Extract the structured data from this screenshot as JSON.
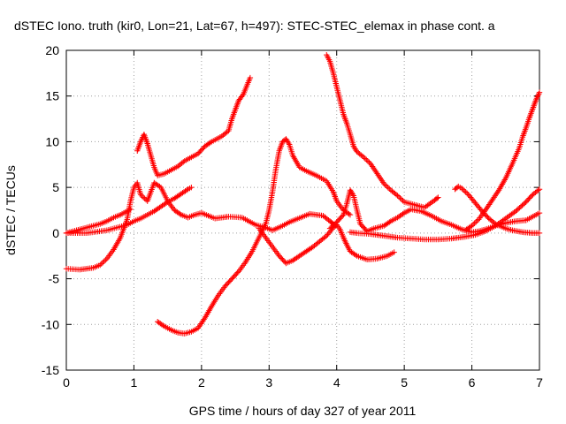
{
  "chart_data": {
    "type": "scatter",
    "title": "dSTEC Iono. truth (kir0, Lon=21, Lat=67, h=497): STEC-STEC_elemax in phase cont. a",
    "xlabel": "GPS time / hours of day 327 of year 2011",
    "ylabel": "dSTEC  / TECUs",
    "xlim": [
      0,
      7
    ],
    "ylim": [
      -15,
      20
    ],
    "xticks": [
      "0",
      "1",
      "2",
      "3",
      "4",
      "5",
      "6",
      "7"
    ],
    "yticks": [
      "-15",
      "-10",
      "-5",
      "0",
      "5",
      "10",
      "15",
      "20"
    ],
    "grid": true,
    "legend": "none",
    "marker": "plus",
    "color": "#ff0000",
    "series": [
      {
        "points": [
          [
            0,
            -3.9
          ],
          [
            0.2,
            -4.0
          ],
          [
            0.4,
            -3.8
          ],
          [
            0.5,
            -3.5
          ],
          [
            0.6,
            -2.8
          ],
          [
            0.7,
            -1.8
          ],
          [
            0.8,
            -0.5
          ],
          [
            0.9,
            1.5
          ],
          [
            0.95,
            3.5
          ],
          [
            1.0,
            5.0
          ],
          [
            1.05,
            5.5
          ],
          [
            1.1,
            4.2
          ],
          [
            1.2,
            3.5
          ],
          [
            1.3,
            5.5
          ],
          [
            1.4,
            5.0
          ],
          [
            1.5,
            3.5
          ],
          [
            1.6,
            2.5
          ],
          [
            1.7,
            2.0
          ],
          [
            1.8,
            1.7
          ],
          [
            1.9,
            2.0
          ],
          [
            2.0,
            2.2
          ],
          [
            2.1,
            1.9
          ],
          [
            2.2,
            1.6
          ],
          [
            2.4,
            1.8
          ],
          [
            2.6,
            1.7
          ],
          [
            2.7,
            1.3
          ],
          [
            2.8,
            0.9
          ],
          [
            2.95,
            0.6
          ],
          [
            3.05,
            0.3
          ],
          [
            3.2,
            0.8
          ],
          [
            3.3,
            1.2
          ],
          [
            3.4,
            1.5
          ],
          [
            3.5,
            1.8
          ],
          [
            3.6,
            2.1
          ],
          [
            3.7,
            2.0
          ],
          [
            3.8,
            1.9
          ],
          [
            3.9,
            1.3
          ],
          [
            3.95,
            1.0
          ]
        ]
      },
      {
        "points": [
          [
            0,
            0
          ],
          [
            0.1,
            0.2
          ],
          [
            0.2,
            0.4
          ],
          [
            0.35,
            0.7
          ],
          [
            0.5,
            1.0
          ],
          [
            0.6,
            1.3
          ],
          [
            0.7,
            1.7
          ],
          [
            0.8,
            2.0
          ],
          [
            0.9,
            2.4
          ],
          [
            0.95,
            2.6
          ]
        ]
      },
      {
        "points": [
          [
            0,
            0
          ],
          [
            0.3,
            0.0
          ],
          [
            0.6,
            0.3
          ],
          [
            0.9,
            0.9
          ],
          [
            1.0,
            1.3
          ],
          [
            1.1,
            1.6
          ],
          [
            1.2,
            2.0
          ],
          [
            1.3,
            2.4
          ],
          [
            1.4,
            2.9
          ],
          [
            1.5,
            3.4
          ],
          [
            1.6,
            3.8
          ],
          [
            1.7,
            4.3
          ],
          [
            1.8,
            4.8
          ],
          [
            1.85,
            5.0
          ]
        ]
      },
      {
        "points": [
          [
            1.35,
            -9.7
          ],
          [
            1.45,
            -10.2
          ],
          [
            1.55,
            -10.6
          ],
          [
            1.65,
            -10.9
          ],
          [
            1.75,
            -11.0
          ],
          [
            1.85,
            -10.8
          ],
          [
            1.95,
            -10.4
          ],
          [
            2.05,
            -9.3
          ],
          [
            2.15,
            -8.0
          ],
          [
            2.25,
            -6.8
          ],
          [
            2.35,
            -5.8
          ],
          [
            2.45,
            -5.0
          ],
          [
            2.55,
            -4.2
          ],
          [
            2.65,
            -3.2
          ],
          [
            2.75,
            -2.0
          ],
          [
            2.85,
            -0.5
          ],
          [
            2.95,
            1.0
          ],
          [
            3.0,
            2.5
          ],
          [
            3.05,
            4.5
          ],
          [
            3.1,
            7.0
          ],
          [
            3.15,
            9.0
          ],
          [
            3.2,
            10.0
          ],
          [
            3.25,
            10.3
          ],
          [
            3.3,
            9.7
          ],
          [
            3.35,
            8.5
          ],
          [
            3.45,
            7.2
          ],
          [
            3.55,
            6.8
          ],
          [
            3.7,
            6.3
          ],
          [
            3.85,
            5.7
          ],
          [
            3.95,
            4.5
          ],
          [
            4.0,
            3.5
          ],
          [
            4.1,
            2.5
          ],
          [
            4.2,
            2.0
          ]
        ]
      },
      {
        "points": [
          [
            1.05,
            9.0
          ],
          [
            1.1,
            10.0
          ],
          [
            1.15,
            10.8
          ],
          [
            1.2,
            9.8
          ],
          [
            1.25,
            8.5
          ],
          [
            1.3,
            7.2
          ],
          [
            1.35,
            6.3
          ],
          [
            1.45,
            6.5
          ],
          [
            1.55,
            6.9
          ],
          [
            1.65,
            7.3
          ],
          [
            1.75,
            7.9
          ],
          [
            1.85,
            8.3
          ],
          [
            1.95,
            8.7
          ],
          [
            2.05,
            9.5
          ],
          [
            2.15,
            10.0
          ],
          [
            2.3,
            10.6
          ],
          [
            2.4,
            11.2
          ],
          [
            2.45,
            12.5
          ],
          [
            2.5,
            13.5
          ],
          [
            2.55,
            14.5
          ],
          [
            2.62,
            15.2
          ],
          [
            2.68,
            16.3
          ],
          [
            2.72,
            17.0
          ]
        ]
      },
      {
        "points": [
          [
            2.85,
            0.5
          ],
          [
            2.95,
            -0.5
          ],
          [
            3.05,
            -1.5
          ],
          [
            3.15,
            -2.5
          ],
          [
            3.25,
            -3.3
          ],
          [
            3.35,
            -3.0
          ],
          [
            3.45,
            -2.5
          ],
          [
            3.55,
            -2.0
          ],
          [
            3.65,
            -1.5
          ],
          [
            3.75,
            -0.9
          ],
          [
            3.85,
            -0.3
          ],
          [
            3.95,
            0.6
          ],
          [
            4.0,
            0.9
          ],
          [
            4.05,
            0.4
          ],
          [
            4.1,
            -0.5
          ],
          [
            4.15,
            -1.3
          ],
          [
            4.2,
            -2.0
          ],
          [
            4.3,
            -2.5
          ],
          [
            4.45,
            -2.9
          ],
          [
            4.6,
            -2.8
          ],
          [
            4.75,
            -2.5
          ],
          [
            4.85,
            -2.1
          ]
        ]
      },
      {
        "points": [
          [
            3.85,
            19.5
          ],
          [
            3.9,
            18.8
          ],
          [
            3.95,
            17.5
          ],
          [
            4.0,
            16.0
          ],
          [
            4.05,
            14.5
          ],
          [
            4.1,
            13.0
          ],
          [
            4.15,
            12.0
          ],
          [
            4.2,
            10.8
          ],
          [
            4.25,
            9.5
          ],
          [
            4.3,
            8.9
          ],
          [
            4.4,
            8.3
          ],
          [
            4.5,
            7.6
          ],
          [
            4.6,
            6.5
          ],
          [
            4.7,
            5.4
          ],
          [
            4.8,
            4.7
          ],
          [
            4.9,
            4.1
          ],
          [
            5.0,
            3.4
          ],
          [
            5.1,
            3.2
          ],
          [
            5.2,
            3.0
          ],
          [
            5.3,
            2.8
          ],
          [
            5.45,
            3.6
          ],
          [
            5.5,
            3.9
          ]
        ]
      },
      {
        "points": [
          [
            3.9,
            0.5
          ],
          [
            4.0,
            1.2
          ],
          [
            4.1,
            2.0
          ],
          [
            4.15,
            3.2
          ],
          [
            4.2,
            4.7
          ],
          [
            4.25,
            4.1
          ],
          [
            4.3,
            2.5
          ],
          [
            4.35,
            1.0
          ],
          [
            4.45,
            0.2
          ],
          [
            4.55,
            0.5
          ],
          [
            4.7,
            0.8
          ],
          [
            4.8,
            1.3
          ],
          [
            4.9,
            1.7
          ],
          [
            5.0,
            2.2
          ],
          [
            5.1,
            2.6
          ],
          [
            5.25,
            2.4
          ],
          [
            5.4,
            1.9
          ],
          [
            5.55,
            1.3
          ],
          [
            5.7,
            0.9
          ],
          [
            5.85,
            0.4
          ],
          [
            6.0,
            0.1
          ],
          [
            6.1,
            0.2
          ],
          [
            6.2,
            0.4
          ],
          [
            6.35,
            0.8
          ],
          [
            6.5,
            1.1
          ],
          [
            6.65,
            1.3
          ],
          [
            6.8,
            1.4
          ],
          [
            6.9,
            1.8
          ],
          [
            7.0,
            2.2
          ]
        ]
      },
      {
        "points": [
          [
            4.2,
            0.1
          ],
          [
            4.3,
            0.0
          ],
          [
            4.5,
            -0.1
          ],
          [
            4.7,
            -0.3
          ],
          [
            4.9,
            -0.5
          ],
          [
            5.1,
            -0.6
          ],
          [
            5.3,
            -0.7
          ],
          [
            5.5,
            -0.7
          ],
          [
            5.7,
            -0.6
          ],
          [
            5.9,
            -0.4
          ],
          [
            6.05,
            -0.2
          ],
          [
            6.2,
            0.2
          ],
          [
            6.35,
            0.8
          ],
          [
            6.5,
            1.6
          ],
          [
            6.65,
            2.4
          ],
          [
            6.8,
            3.4
          ],
          [
            6.9,
            4.2
          ],
          [
            7.0,
            4.8
          ]
        ]
      },
      {
        "points": [
          [
            5.75,
            4.8
          ],
          [
            5.8,
            5.1
          ],
          [
            5.85,
            4.9
          ],
          [
            5.95,
            4.2
          ],
          [
            6.05,
            3.3
          ],
          [
            6.15,
            2.4
          ],
          [
            6.25,
            1.6
          ],
          [
            6.35,
            1.0
          ],
          [
            6.5,
            0.5
          ],
          [
            6.6,
            0.3
          ],
          [
            6.75,
            0.1
          ],
          [
            6.9,
            0.0
          ],
          [
            7.0,
            0.0
          ]
        ]
      },
      {
        "points": [
          [
            5.9,
            0.3
          ],
          [
            6.0,
            0.8
          ],
          [
            6.1,
            1.5
          ],
          [
            6.2,
            2.5
          ],
          [
            6.3,
            3.6
          ],
          [
            6.4,
            4.7
          ],
          [
            6.5,
            6.0
          ],
          [
            6.6,
            7.6
          ],
          [
            6.7,
            9.3
          ],
          [
            6.75,
            10.5
          ],
          [
            6.8,
            11.5
          ],
          [
            6.85,
            12.6
          ],
          [
            6.9,
            13.6
          ],
          [
            6.95,
            14.6
          ],
          [
            7.0,
            15.4
          ]
        ]
      }
    ]
  }
}
